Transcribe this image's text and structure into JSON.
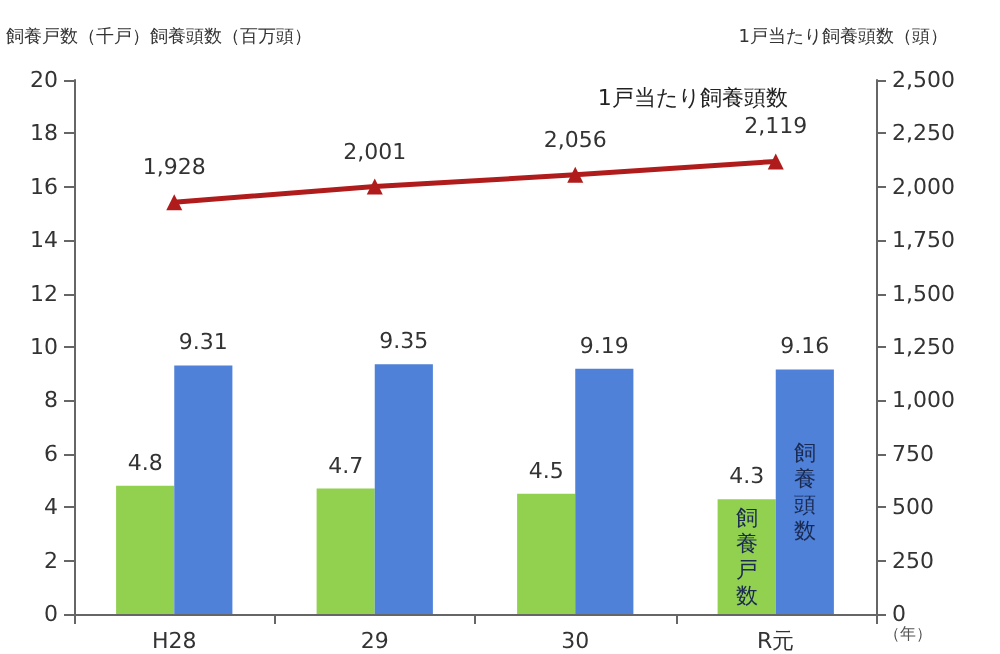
{
  "chart_data": {
    "type": "bar",
    "ylabel": "飼養戸数（千戸）飼養頭数（百万頭）",
    "y2label": "1戸当たり飼養頭数（頭）",
    "xlabel": "（年）",
    "categories": [
      "H28",
      "29",
      "30",
      "R元"
    ],
    "series": [
      {
        "name": "飼養戸数",
        "color": "#92d050",
        "values": [
          4.8,
          4.7,
          4.5,
          4.3
        ]
      },
      {
        "name": "飼養頭数",
        "color": "#4f81d9",
        "values": [
          9.31,
          9.35,
          9.19,
          9.16
        ]
      },
      {
        "name": "1戸当たり飼養頭数",
        "type": "line",
        "axis": "y2",
        "color": "#b01c1c",
        "marker": "triangle",
        "values": [
          1928,
          2001,
          2056,
          2119
        ],
        "value_labels": [
          "1,928",
          "2,001",
          "2,056",
          "2,119"
        ]
      }
    ],
    "ylim": [
      0,
      20
    ],
    "yticks": [
      0,
      2,
      4,
      6,
      8,
      10,
      12,
      14,
      16,
      18,
      20
    ],
    "y2lim": [
      0,
      2500
    ],
    "y2ticks": [
      0,
      250,
      500,
      750,
      {
        "value": 1000,
        "label": "1,000"
      },
      {
        "value": 1250,
        "label": "1,250"
      },
      {
        "value": 1500,
        "label": "1,500"
      },
      {
        "value": 1750,
        "label": "1,750"
      },
      {
        "value": 2000,
        "label": "2,000"
      },
      {
        "value": 2250,
        "label": "2,250"
      },
      {
        "value": 2500,
        "label": "2,500"
      }
    ],
    "data_labels": true,
    "grid": false,
    "legend": false
  }
}
